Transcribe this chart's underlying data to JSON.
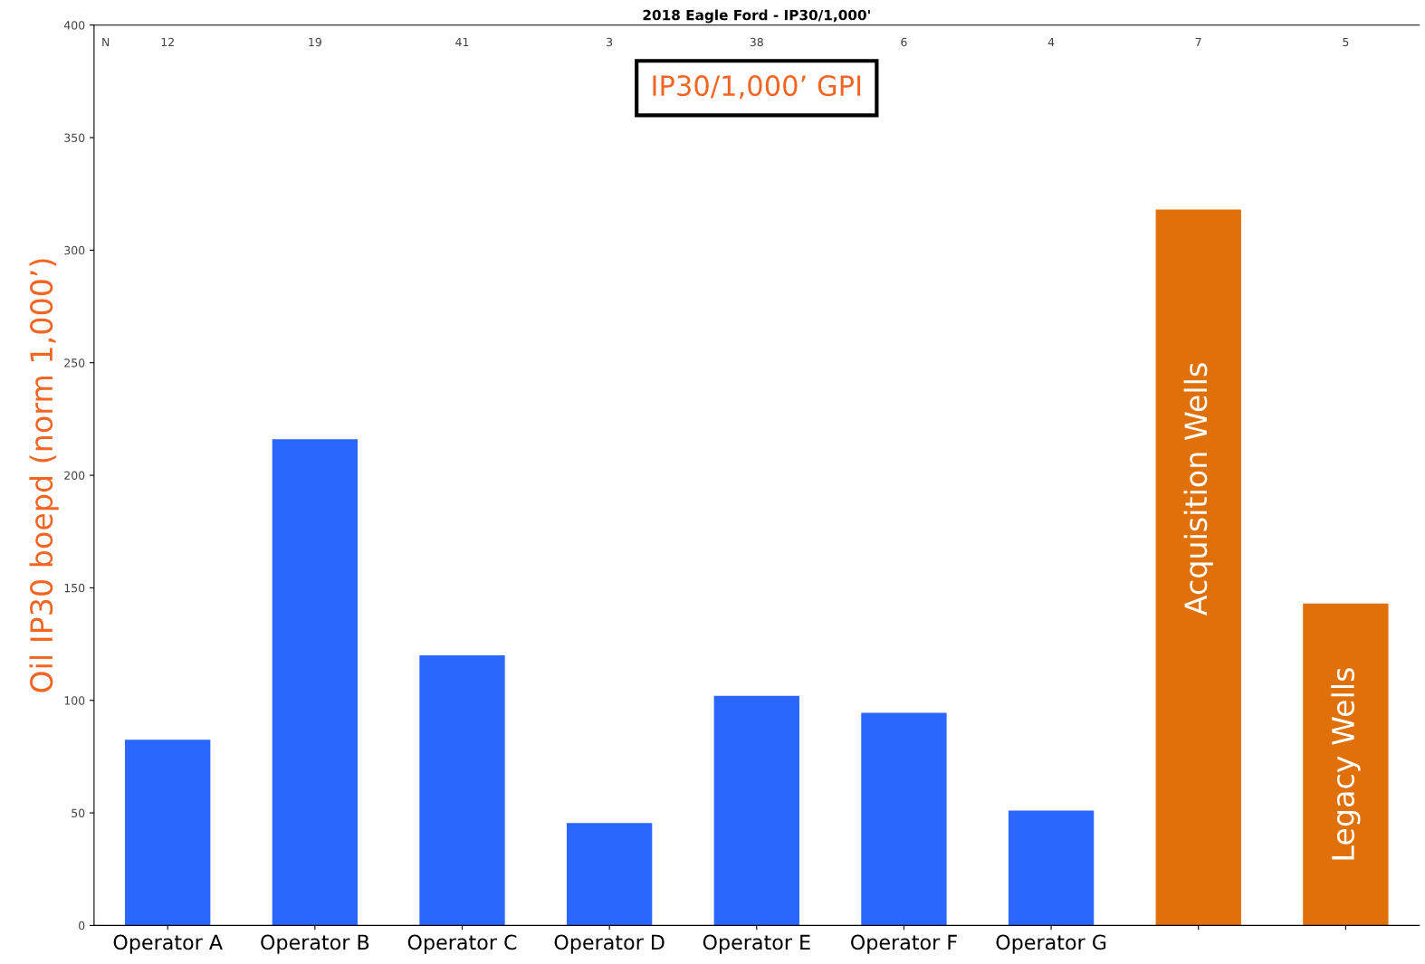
{
  "chart_data": {
    "type": "bar",
    "subtitle": "2018 Eagle Ford - IP30/1,000'",
    "ylabel": "Oil IP30 boepd (norm 1,000’)",
    "categories": [
      "Operator A",
      "Operator B",
      "Operator C",
      "Operator D",
      "Operator E",
      "Operator F",
      "Operator G",
      null,
      null
    ],
    "values": [
      82.5,
      216,
      120,
      45.5,
      102,
      94.5,
      51,
      318,
      143
    ],
    "colors": [
      "#2a66ff",
      "#2a66ff",
      "#2a66ff",
      "#2a66ff",
      "#2a66ff",
      "#2a66ff",
      "#2a66ff",
      "#e0700a",
      "#e0700a"
    ],
    "ylim": [
      0,
      400
    ],
    "yticks": [
      0,
      50,
      100,
      150,
      200,
      250,
      300,
      350,
      400
    ],
    "grid": false,
    "legend": false,
    "annotations": [
      "IP30/1,000’ GPI",
      "N",
      "12",
      "19",
      "41",
      "3",
      "38",
      "6",
      "4",
      "7",
      "5",
      "Acquisition Wells",
      "Legacy Wells"
    ]
  }
}
